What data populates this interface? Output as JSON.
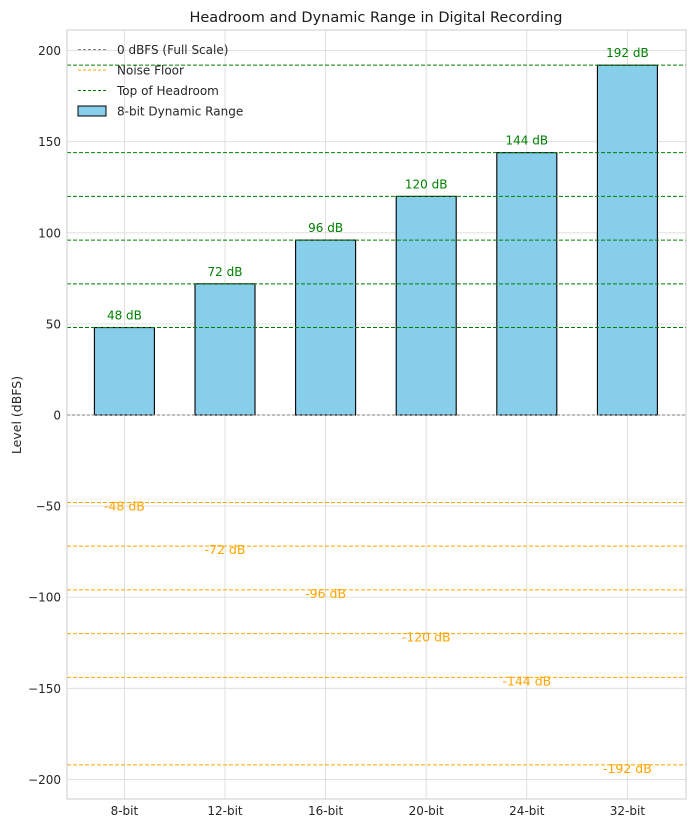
{
  "chart_data": {
    "type": "bar",
    "title": "Headroom and Dynamic Range in Digital Recording",
    "xlabel": "",
    "ylabel": "Level (dBFS)",
    "categories": [
      "8-bit",
      "12-bit",
      "16-bit",
      "20-bit",
      "24-bit",
      "32-bit"
    ],
    "values": [
      48,
      72,
      96,
      120,
      144,
      192
    ],
    "noise_floor": [
      -48,
      -72,
      -96,
      -120,
      -144,
      -192
    ],
    "top_labels": [
      "48 dB",
      "72 dB",
      "96 dB",
      "120 dB",
      "144 dB",
      "192 dB"
    ],
    "noise_labels": [
      "-48 dB",
      "-72 dB",
      "-96 dB",
      "-120 dB",
      "-144 dB",
      "-192 dB"
    ],
    "ylim": [
      -211,
      211
    ],
    "yticks": [
      200,
      150,
      100,
      50,
      0,
      -50,
      -100,
      -150,
      -200
    ],
    "ytick_labels": [
      "200",
      "150",
      "100",
      "50",
      "0",
      "−50",
      "−100",
      "−150",
      "−200"
    ],
    "zero_line": 0,
    "grid": true,
    "legend": {
      "placement": "top-left",
      "entries": [
        {
          "label": "0 dBFS (Full Scale)",
          "kind": "dashed-line",
          "color": "#808080"
        },
        {
          "label": "Noise Floor",
          "kind": "dashed-line",
          "color": "#ffa500"
        },
        {
          "label": "Top of Headroom",
          "kind": "dashed-line",
          "color": "#008000"
        },
        {
          "label": "8-bit Dynamic Range",
          "kind": "patch",
          "color": "#87ceeb"
        }
      ]
    },
    "colors": {
      "bar": "#87ceeb",
      "bar_edge": "#000000",
      "headroom_line": "#008000",
      "noise_line": "#ffa500",
      "zero_line": "#808080"
    }
  }
}
